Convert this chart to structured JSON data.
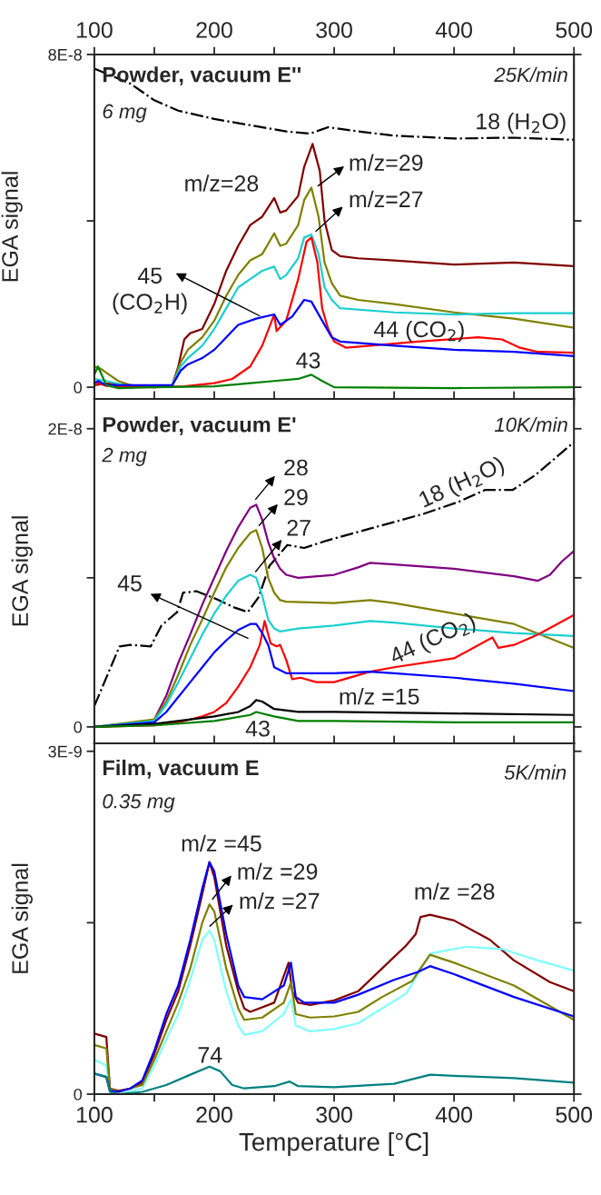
{
  "chart_data": [
    {
      "type": "line",
      "title": "Powder, vacuum E''",
      "subtitle": "6 mg",
      "ylabel": "EGA signal",
      "xlim": [
        100,
        500
      ],
      "ylim": [
        -2.8e-09,
        8e-08
      ],
      "xticks": [
        100,
        {
          "value": 150,
          "label": null
        },
        200,
        {
          "value": 250,
          "label": null
        },
        300,
        {
          "value": 350,
          "label": null
        },
        400,
        {
          "value": 450,
          "label": null
        },
        500
      ],
      "x2lim": [
        100,
        500
      ],
      "x2ticks": [
        100,
        {
          "value": 150,
          "label": null
        },
        200,
        {
          "value": 250,
          "label": null
        },
        300,
        {
          "value": 350,
          "label": null
        },
        400,
        {
          "value": 450,
          "label": null
        },
        500
      ],
      "yticks": [
        0,
        {
          "value": 4e-08,
          "label": null
        },
        {
          "value": 8e-08,
          "label": "8E-8"
        }
      ],
      "tick_labels": "y",
      "grid": false,
      "annotations": [
        "25K/min",
        "18 (H$_{2}$O)",
        "m/z=28",
        "m/z=29",
        "m/z=27",
        "45\n(CO$_{2}$H)",
        "44 (CO$_{2}$)",
        "43"
      ],
      "series": [
        {
          "color": "#000000",
          "line_style": "dashdot",
          "x": [
            100,
            130,
            150,
            170,
            200,
            230,
            260,
            280,
            295,
            320,
            350,
            400,
            450,
            500
          ],
          "values": [
            7.66e-08,
            7.3e-08,
            6.9e-08,
            6.65e-08,
            6.45e-08,
            6.3e-08,
            6.15e-08,
            6.1e-08,
            6.25e-08,
            6.15e-08,
            6.05e-08,
            5.98e-08,
            6e-08,
            5.95e-08
          ]
        },
        {
          "color": "#800000",
          "x": [
            100,
            110,
            130,
            150,
            165,
            170,
            175,
            180,
            190,
            200,
            210,
            220,
            230,
            240,
            250,
            255,
            260,
            270,
            275,
            282,
            288,
            292,
            298,
            305,
            320,
            350,
            400,
            450,
            500
          ],
          "values": [
            5e-10,
            9e-10,
            5e-10,
            2e-10,
            5e-10,
            5e-09,
            1.15e-08,
            1.3e-08,
            1.4e-08,
            2e-08,
            2.8e-08,
            3.4e-08,
            3.9e-08,
            4.1e-08,
            4.55e-08,
            4.2e-08,
            4.25e-08,
            4.6e-08,
            5.3e-08,
            5.85e-08,
            5.2e-08,
            4e-08,
            3.3e-08,
            3.15e-08,
            3.1e-08,
            3.05e-08,
            2.95e-08,
            3e-08,
            2.91e-08
          ]
        },
        {
          "color": "#808000",
          "x": [
            100,
            105,
            110,
            120,
            130,
            150,
            165,
            172,
            178,
            190,
            200,
            210,
            220,
            230,
            240,
            250,
            255,
            260,
            270,
            275,
            281,
            287,
            292,
            298,
            305,
            320,
            350,
            400,
            450,
            500
          ],
          "values": [
            5e-09,
            4.5e-09,
            3.5e-09,
            1.5e-09,
            5e-10,
            0,
            5e-10,
            6e-09,
            9e-09,
            1.2e-08,
            1.6e-08,
            2.2e-08,
            2.7e-08,
            3.05e-08,
            3.2e-08,
            3.7e-08,
            3.4e-08,
            3.45e-08,
            3.9e-08,
            4.5e-08,
            4.8e-08,
            4.1e-08,
            3e-08,
            2.5e-08,
            2.2e-08,
            2.1e-08,
            2e-08,
            1.8e-08,
            1.65e-08,
            1.43e-08
          ]
        },
        {
          "color": "#1ccfcf",
          "x": [
            100,
            110,
            130,
            165,
            172,
            178,
            190,
            200,
            210,
            220,
            230,
            240,
            250,
            255,
            260,
            270,
            275,
            281,
            287,
            292,
            298,
            305,
            350,
            400,
            450,
            500
          ],
          "values": [
            2e-09,
            1.5e-09,
            2e-10,
            5e-10,
            5e-09,
            7e-09,
            1e-08,
            1.4e-08,
            1.9e-08,
            2.4e-08,
            2.6e-08,
            2.8e-08,
            2.9e-08,
            2.6e-08,
            2.7e-08,
            3.1e-08,
            3.6e-08,
            3.67e-08,
            3.2e-08,
            2.4e-08,
            2.1e-08,
            1.9e-08,
            1.8e-08,
            1.75e-08,
            1.78e-08,
            1.78e-08
          ]
        },
        {
          "color": "#ff0000",
          "x": [
            100,
            103,
            110,
            150,
            175,
            200,
            215,
            230,
            240,
            250,
            252,
            260,
            270,
            277,
            281,
            286,
            290,
            295,
            300,
            310,
            330,
            370,
            420,
            440,
            455,
            470,
            500
          ],
          "values": [
            2e-10,
            1e-09,
            3e-10,
            0,
            2e-10,
            1e-09,
            2e-09,
            5e-09,
            1e-08,
            1.75e-08,
            1.35e-08,
            1.6e-08,
            2.6e-08,
            3.5e-08,
            3.6e-08,
            3e-08,
            1.9e-08,
            1.4e-08,
            1.1e-08,
            9.5e-09,
            1e-08,
            1.1e-08,
            1.2e-08,
            1.15e-08,
            9.5e-09,
            8.5e-09,
            8.3e-09
          ]
        },
        {
          "color": "#0000ff",
          "x": [
            100,
            103,
            110,
            165,
            172,
            178,
            190,
            200,
            210,
            220,
            235,
            250,
            255,
            265,
            275,
            281,
            290,
            298,
            305,
            350,
            400,
            450,
            500
          ],
          "values": [
            1e-09,
            1.5e-09,
            5e-10,
            5e-10,
            4e-09,
            5.5e-09,
            7e-09,
            9e-09,
            1.2e-08,
            1.5e-08,
            1.65e-08,
            1.75e-08,
            1.5e-08,
            1.7e-08,
            2.1e-08,
            2.06e-08,
            1.6e-08,
            1.2e-08,
            1.1e-08,
            1e-08,
            9e-09,
            8.5e-09,
            7.5e-09
          ]
        },
        {
          "color": "#008000",
          "x": [
            100,
            103,
            110,
            120,
            150,
            200,
            230,
            250,
            270,
            281,
            290,
            300,
            400,
            500
          ],
          "values": [
            3e-09,
            5e-09,
            5e-10,
            -2e-10,
            0,
            2e-10,
            1e-09,
            1.5e-09,
            2e-09,
            3e-09,
            1.5e-09,
            0,
            -2e-10,
            0
          ]
        }
      ]
    },
    {
      "type": "line",
      "title": "Powder, vacuum E'",
      "subtitle": "2 mg",
      "ylabel": "EGA signal",
      "xlim": [
        100,
        500
      ],
      "ylim": [
        -1.1e-09,
        2.2e-08
      ],
      "xticks": [
        100,
        {
          "value": 150,
          "label": null
        },
        200,
        {
          "value": 250,
          "label": null
        },
        300,
        {
          "value": 350,
          "label": null
        },
        400,
        {
          "value": 450,
          "label": null
        },
        500
      ],
      "yticks": [
        0,
        {
          "value": 1e-08,
          "label": null
        },
        {
          "value": 2e-08,
          "label": "2E-8"
        }
      ],
      "tick_labels": "y",
      "grid": false,
      "annotations": [
        "10K/min",
        "28",
        "29",
        "27",
        "45",
        "18 (H$_{2}$O)",
        "44 (CO$_{2}$)",
        "m/z =15",
        "43"
      ],
      "series": [
        {
          "color": "#000000",
          "line_style": "dashdot",
          "x": [
            100,
            121,
            130,
            147,
            156,
            169,
            174,
            185,
            201,
            217,
            228,
            237,
            246,
            261,
            275,
            294,
            330,
            375,
            404,
            426,
            449,
            468,
            500
          ],
          "values": [
            1.4e-09,
            5.4e-09,
            5.5e-09,
            5.4e-09,
            6.8e-09,
            7.7e-09,
            9e-09,
            9.1e-09,
            8.6e-09,
            8e-09,
            7.7e-09,
            8.7e-09,
            1.08e-08,
            1.22e-08,
            1.2e-08,
            1.25e-08,
            1.33e-08,
            1.43e-08,
            1.51e-08,
            1.59e-08,
            1.59e-08,
            1.69e-08,
            1.91e-08
          ]
        },
        {
          "color": "#800080",
          "x": [
            100,
            140,
            150,
            160,
            170,
            180,
            190,
            200,
            210,
            220,
            230,
            235,
            240,
            245,
            250,
            255,
            260,
            270,
            300,
            320,
            330,
            350,
            400,
            450,
            470,
            480,
            490,
            500
          ],
          "values": [
            0,
            2e-10,
            5e-10,
            2.1e-09,
            4.3e-09,
            6.2e-09,
            8.2e-09,
            1e-08,
            1.18e-08,
            1.34e-08,
            1.47e-08,
            1.49e-08,
            1.39e-08,
            1.24e-08,
            1.13e-08,
            1.06e-08,
            1.02e-08,
            1e-08,
            1.02e-08,
            1.07e-08,
            1.1e-08,
            1.09e-08,
            1.06e-08,
            1.01e-08,
            9.8e-09,
            1.02e-08,
            1.11e-08,
            1.18e-08
          ]
        },
        {
          "color": "#808000",
          "x": [
            100,
            150,
            160,
            170,
            180,
            190,
            200,
            210,
            220,
            230,
            235,
            240,
            245,
            250,
            255,
            260,
            300,
            330,
            350,
            400,
            450,
            500
          ],
          "values": [
            0,
            5e-10,
            1.7e-09,
            3.5e-09,
            5.5e-09,
            7.2e-09,
            9e-09,
            1.07e-08,
            1.2e-08,
            1.3e-08,
            1.32e-08,
            1.2e-08,
            1e-08,
            9e-09,
            8.5e-09,
            8.4e-09,
            8.3e-09,
            8.5e-09,
            8.3e-09,
            7.6e-09,
            6.9e-09,
            5.3e-09
          ]
        },
        {
          "color": "#1ccfcf",
          "x": [
            100,
            150,
            160,
            170,
            180,
            190,
            200,
            210,
            220,
            230,
            235,
            240,
            245,
            250,
            255,
            270,
            300,
            330,
            350,
            400,
            450,
            500
          ],
          "values": [
            0,
            4e-10,
            1.5e-09,
            3e-09,
            4.6e-09,
            6.2e-09,
            7.6e-09,
            8.8e-09,
            9.8e-09,
            1.02e-08,
            1e-08,
            8.8e-09,
            7.2e-09,
            6.6e-09,
            6.4e-09,
            6.6e-09,
            6.8e-09,
            7.1e-09,
            7e-09,
            6.6e-09,
            6.3e-09,
            6.1e-09
          ]
        },
        {
          "color": "#ff0000",
          "x": [
            100,
            150,
            170,
            190,
            200,
            210,
            220,
            230,
            238,
            242,
            247,
            252,
            255,
            260,
            265,
            272,
            285,
            300,
            330,
            350,
            400,
            432,
            437,
            450,
            470,
            500
          ],
          "values": [
            0,
            1e-10,
            3e-10,
            7e-10,
            1e-09,
            1.6e-09,
            2.7e-09,
            4e-09,
            5.5e-09,
            7.1e-09,
            5.6e-09,
            5.4e-09,
            5.5e-09,
            4.5e-09,
            3.2e-09,
            3.3e-09,
            3e-09,
            3e-09,
            3.7e-09,
            4e-09,
            4.6e-09,
            6e-09,
            5.3e-09,
            5.5e-09,
            6.2e-09,
            7.5e-09
          ]
        },
        {
          "color": "#0000ff",
          "x": [
            100,
            150,
            160,
            170,
            180,
            190,
            200,
            210,
            220,
            230,
            235,
            240,
            245,
            250,
            260,
            300,
            330,
            350,
            400,
            450,
            500
          ],
          "values": [
            0,
            3e-10,
            1e-09,
            2e-09,
            3e-09,
            4e-09,
            5e-09,
            5.8e-09,
            6.5e-09,
            6.9e-09,
            6.9e-09,
            6.3e-09,
            5.5e-09,
            4e-09,
            3.6e-09,
            3.6e-09,
            3.7e-09,
            3.6e-09,
            3.3e-09,
            2.9e-09,
            2.4e-09
          ]
        },
        {
          "color": "#000000",
          "x": [
            100,
            150,
            200,
            220,
            230,
            235,
            240,
            250,
            270,
            300,
            400,
            500
          ],
          "values": [
            0,
            2e-10,
            7e-10,
            1e-09,
            1.4e-09,
            1.8e-09,
            1.7e-09,
            1.2e-09,
            1e-09,
            1e-09,
            9e-10,
            8e-10
          ]
        },
        {
          "color": "#008000",
          "x": [
            100,
            150,
            200,
            230,
            235,
            250,
            270,
            300,
            400,
            500
          ],
          "values": [
            0,
            1e-10,
            4e-10,
            8e-10,
            1e-09,
            7e-10,
            4e-10,
            4e-10,
            3e-10,
            3e-10
          ]
        }
      ]
    },
    {
      "type": "line",
      "title": "Film, vacuum E",
      "subtitle": "0.35 mg",
      "xlabel": "Temperature [°C]",
      "ylabel": "EGA signal",
      "xlim": [
        100,
        500
      ],
      "ylim": [
        0,
        3.07e-09
      ],
      "xticks": [
        100,
        {
          "value": 150,
          "label": null
        },
        200,
        {
          "value": 250,
          "label": null
        },
        300,
        {
          "value": 350,
          "label": null
        },
        400,
        {
          "value": 450,
          "label": null
        },
        500
      ],
      "yticks": [
        0,
        {
          "value": 1.5e-09,
          "label": null
        },
        {
          "value": 3e-09,
          "label": "3E-9"
        }
      ],
      "grid": false,
      "annotations": [
        "5K/min",
        "m/z =45",
        "m/z =29",
        "m/z =27",
        "m/z =28",
        "74"
      ],
      "series": [
        {
          "color": "#800000",
          "x": [
            100,
            110,
            113,
            120,
            130,
            140,
            150,
            160,
            170,
            180,
            190,
            196,
            200,
            210,
            220,
            225,
            230,
            250,
            262,
            265,
            270,
            280,
            300,
            320,
            340,
            360,
            368,
            372,
            380,
            400,
            430,
            450,
            480,
            500
          ],
          "values": [
            5.3e-10,
            5e-10,
            5e-11,
            3e-11,
            5e-11,
            1e-10,
            3.5e-10,
            6.5e-10,
            9e-10,
            1.3e-09,
            1.75e-09,
            2.03e-09,
            1.9e-09,
            1.3e-09,
            9e-10,
            7.5e-10,
            7.2e-10,
            8e-10,
            1.15e-09,
            9e-10,
            8e-10,
            7.8e-10,
            8.2e-10,
            9e-10,
            1.1e-09,
            1.3e-09,
            1.4e-09,
            1.55e-09,
            1.57e-09,
            1.52e-09,
            1.35e-09,
            1.17e-09,
            9.8e-10,
            9e-10
          ]
        },
        {
          "color": "#80ffff",
          "x": [
            100,
            110,
            113,
            120,
            140,
            150,
            160,
            170,
            180,
            190,
            196,
            200,
            210,
            220,
            225,
            240,
            258,
            264,
            268,
            280,
            300,
            320,
            340,
            360,
            370,
            380,
            410,
            440,
            470,
            500
          ],
          "values": [
            3e-10,
            2.5e-10,
            2e-11,
            0,
            5e-11,
            2.5e-10,
            4.8e-10,
            7e-10,
            1e-09,
            1.35e-09,
            1.43e-09,
            1.35e-09,
            9e-10,
            6e-10,
            5.2e-10,
            5.5e-10,
            7e-10,
            8.3e-10,
            6e-10,
            5.5e-10,
            5.7e-10,
            6.2e-10,
            7.5e-10,
            8.8e-10,
            1.05e-09,
            1.23e-09,
            1.29e-09,
            1.27e-09,
            1.17e-09,
            1.08e-09
          ]
        },
        {
          "color": "#808000",
          "x": [
            100,
            110,
            113,
            120,
            140,
            150,
            160,
            170,
            180,
            190,
            196,
            200,
            210,
            220,
            225,
            240,
            258,
            264,
            268,
            280,
            300,
            320,
            340,
            365,
            372,
            380,
            400,
            450,
            500
          ],
          "values": [
            4.3e-10,
            4e-10,
            5e-11,
            2e-11,
            8e-11,
            3e-10,
            5.5e-10,
            8e-10,
            1.1e-09,
            1.5e-09,
            1.66e-09,
            1.6e-09,
            1.1e-09,
            7.5e-10,
            6.5e-10,
            6.7e-10,
            8e-10,
            9.8e-10,
            7e-10,
            6.7e-10,
            6.8e-10,
            7.2e-10,
            8.5e-10,
            9.9e-10,
            1.1e-09,
            1.22e-09,
            1.15e-09,
            9.5e-10,
            6.5e-10
          ]
        },
        {
          "color": "#0000ff",
          "x": [
            100,
            110,
            113,
            120,
            130,
            140,
            150,
            160,
            170,
            180,
            190,
            196,
            200,
            210,
            220,
            225,
            240,
            258,
            264,
            268,
            275,
            300,
            320,
            350,
            370,
            380,
            400,
            450,
            500
          ],
          "values": [
            1.8e-10,
            1.5e-10,
            3e-11,
            2e-11,
            5e-11,
            1.2e-10,
            3.8e-10,
            7e-10,
            9.5e-10,
            1.35e-09,
            1.8e-09,
            2.03e-09,
            1.95e-09,
            1.4e-09,
            9.5e-10,
            8.5e-10,
            8.3e-10,
            9.5e-10,
            1.15e-09,
            8.5e-10,
            8e-10,
            8e-10,
            8.7e-10,
            1e-09,
            1.07e-09,
            1.12e-09,
            1.05e-09,
            8.5e-10,
            6.8e-10
          ]
        },
        {
          "color": "#008080",
          "x": [
            100,
            110,
            113,
            120,
            140,
            160,
            180,
            196,
            205,
            215,
            225,
            250,
            263,
            270,
            300,
            350,
            380,
            400,
            450,
            500
          ],
          "values": [
            1.8e-10,
            1.5e-10,
            2e-11,
            0,
            2e-11,
            8e-11,
            1.7e-10,
            2.4e-10,
            2e-10,
            8e-11,
            5e-11,
            7e-11,
            1.1e-10,
            7e-11,
            6e-11,
            9e-11,
            1.7e-10,
            1.6e-10,
            1.4e-10,
            1e-10
          ]
        }
      ]
    }
  ]
}
